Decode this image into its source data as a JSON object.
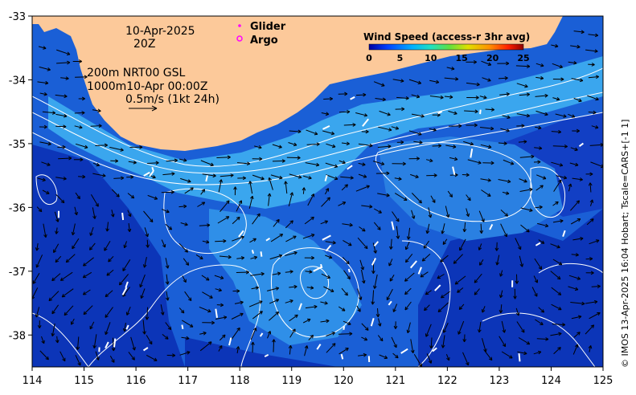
{
  "chart_data": {
    "type": "heatmap",
    "x_ticks": [
      "114",
      "115",
      "116",
      "117",
      "118",
      "119",
      "120",
      "121",
      "122",
      "123",
      "124",
      "125"
    ],
    "y_ticks": [
      "-33",
      "-34",
      "-35",
      "-36",
      "-37",
      "-38"
    ],
    "xlim": [
      114,
      125
    ],
    "ylim": [
      -38.5,
      -33
    ],
    "info": {
      "date": "10-Apr-2025",
      "hour": "20Z",
      "depth_line1": "200m  NRT00 GSL",
      "depth_line2": "1000m10-Apr 00:00Z",
      "scale_label": "0.5m/s (1kt 24h)"
    },
    "legend": {
      "glider": "Glider",
      "argo": "Argo",
      "glider_color": "#ff00ff",
      "argo_color": "#ff00ff"
    },
    "colorbar": {
      "title": "Wind Speed (access-r 3hr avg)",
      "ticks": [
        "0",
        "5",
        "10",
        "15",
        "20",
        "25"
      ],
      "range": [
        0,
        25
      ]
    },
    "credit": "© IMOS 13-Apr-2025 16:04 Hobart; Tscale=CARS+[-1 1]",
    "colors": {
      "land": "#fcc99a",
      "ocean_deep": "#0a2fb0",
      "ocean_mid": "#1e70e0",
      "ocean_light": "#40b4f0",
      "contour": "#ffffff",
      "arrow": "#000000"
    }
  }
}
